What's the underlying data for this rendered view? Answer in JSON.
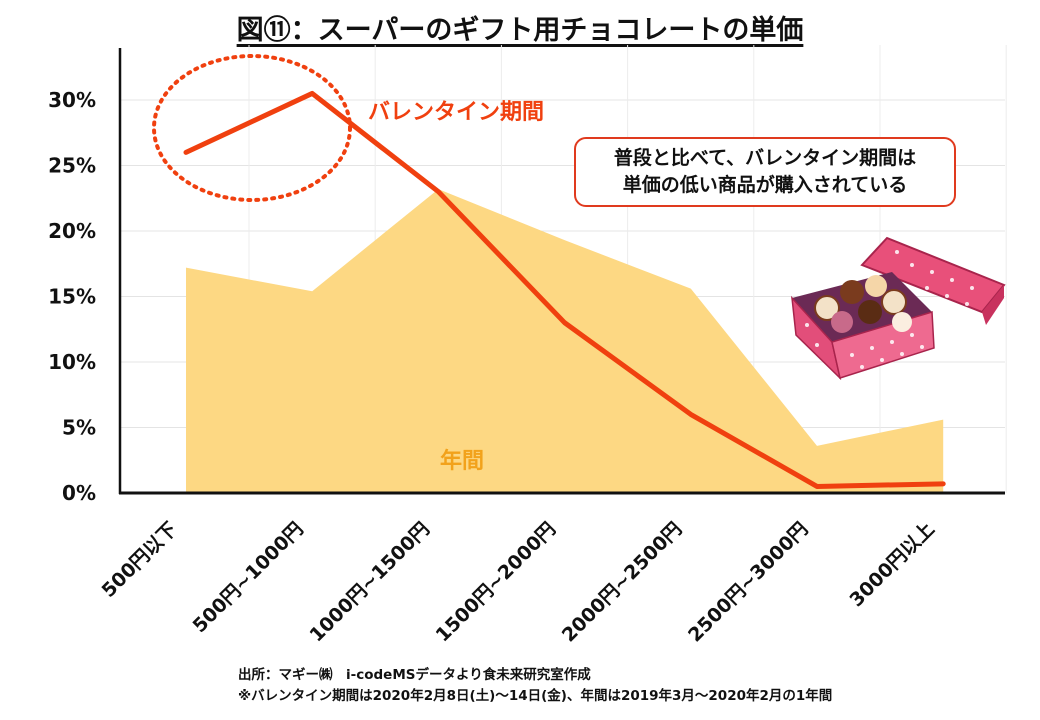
{
  "title": "図⑪：スーパーのギフト用チョコレートの単価",
  "callout": {
    "line1": "普段と比べて、バレンタイン期間は",
    "line2": "単価の低い商品が購入されている"
  },
  "source": {
    "line1": "出所：マギー㈱　i-codeMSデータより食未来研究室作成",
    "line2": "※バレンタイン期間は2020年2月8日(土)～14日(金)、年間は2019年3月～2020年2月の1年間"
  },
  "colors": {
    "valentine": "#f0400f",
    "annual": "#fdd883",
    "annual_label": "#f2a21b"
  },
  "chart_data": {
    "type": "line",
    "categories": [
      "500円以下",
      "500円~1000円",
      "1000円~1500円",
      "1500円~2000円",
      "2000円~2500円",
      "2500円~3000円",
      "3000円以上"
    ],
    "series": [
      {
        "name": "バレンタイン期間",
        "type": "line",
        "values": [
          26.0,
          30.5,
          23.0,
          13.0,
          6.0,
          0.5,
          0.7
        ]
      },
      {
        "name": "年間",
        "type": "area",
        "values": [
          17.2,
          15.4,
          23.2,
          19.3,
          15.6,
          3.6,
          5.6
        ]
      }
    ],
    "ylim": [
      0,
      30
    ],
    "yticks": [
      "0%",
      "5%",
      "10%",
      "15%",
      "20%",
      "25%",
      "30%"
    ],
    "grid": true,
    "highlight": "500円以下 ~ 500円~1000円"
  }
}
